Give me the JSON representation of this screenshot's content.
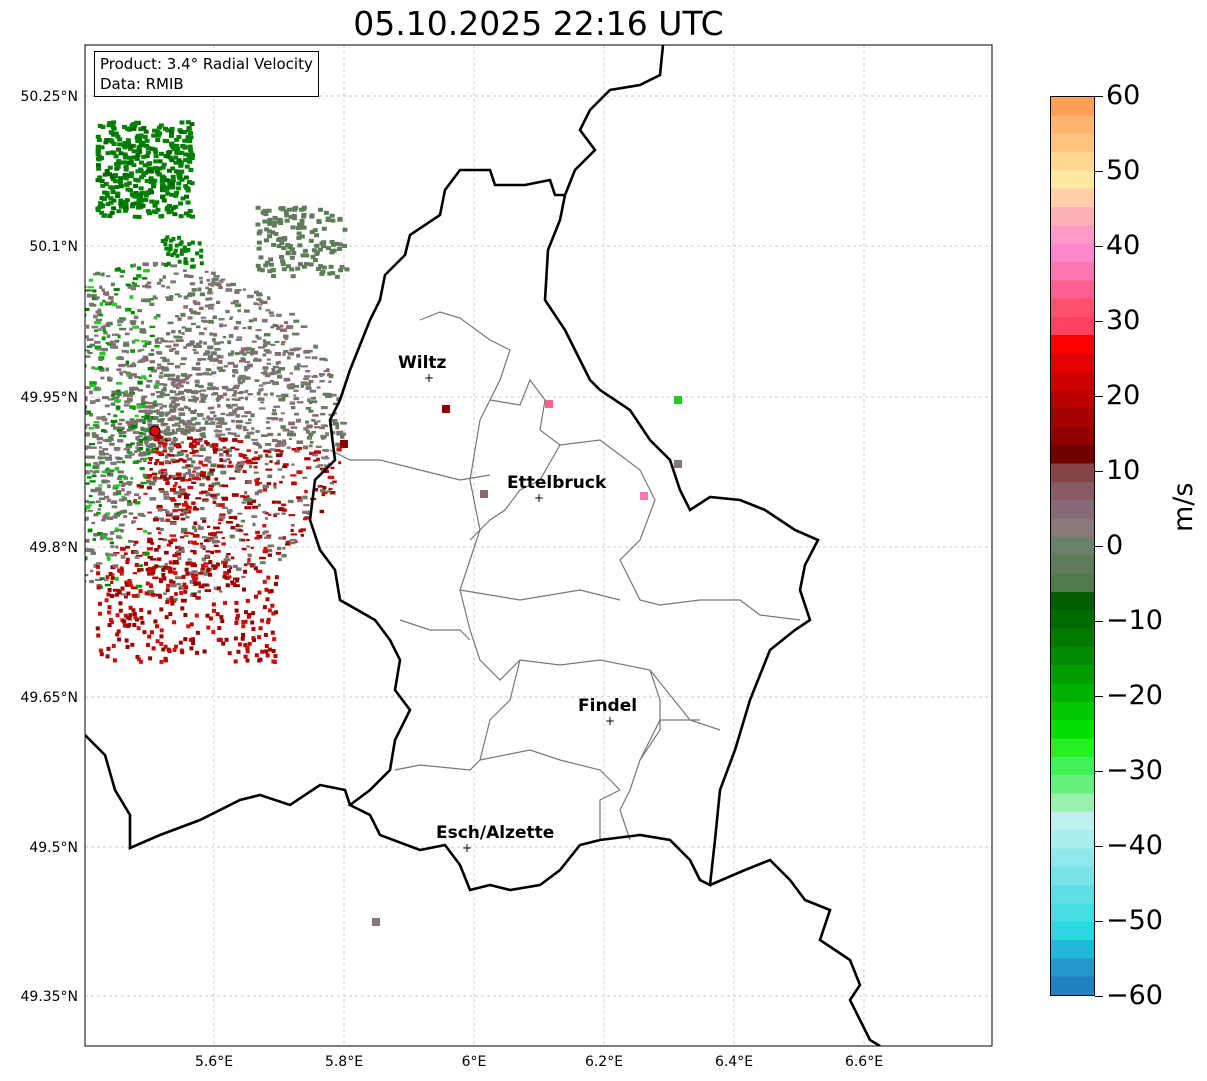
{
  "title": "05.10.2025 22:16 UTC",
  "info": {
    "product": "Product: 3.4° Radial Velocity",
    "data": "Data: RMIB"
  },
  "lon_ticks": [
    "5.6°E",
    "5.8°E",
    "6°E",
    "6.2°E",
    "6.4°E",
    "6.6°E"
  ],
  "lat_ticks": [
    "50.25°N",
    "50.1°N",
    "49.95°N",
    "49.8°N",
    "49.65°N",
    "49.5°N",
    "49.35°N"
  ],
  "cities": [
    "Wiltz",
    "Ettelbruck",
    "Findel",
    "Esch/Alzette"
  ],
  "colorbar": {
    "unit": "m/s",
    "ticks": [
      "60",
      "50",
      "40",
      "30",
      "20",
      "10",
      "0",
      "−10",
      "−20",
      "−30",
      "−40",
      "−50",
      "−60"
    ],
    "range": [
      -60,
      60
    ]
  }
}
